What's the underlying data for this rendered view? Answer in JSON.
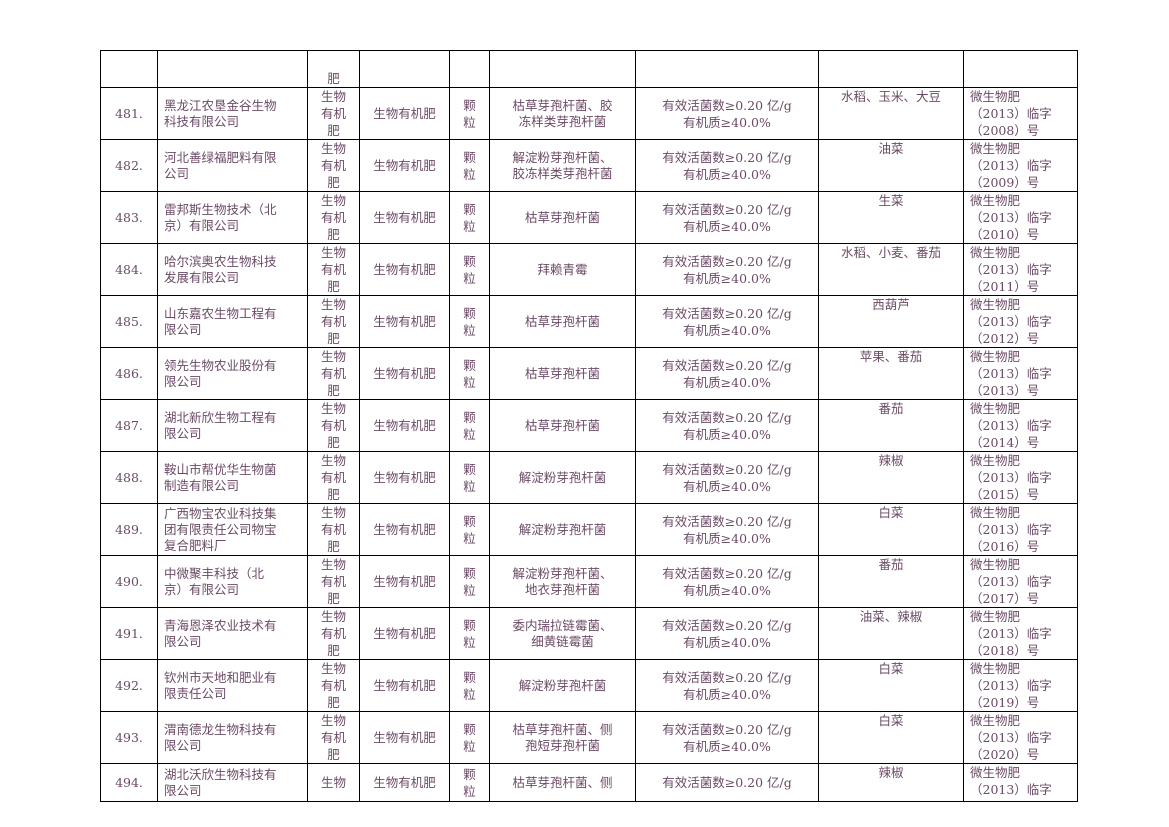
{
  "top_fragment": {
    "type_tail": "肥"
  },
  "rows": [
    {
      "no": "481.",
      "company": [
        "黑龙江农垦金谷生物",
        "科技有限公司"
      ],
      "type": [
        "生物",
        "有机",
        "肥"
      ],
      "name": "生物有机肥",
      "form": [
        "颗",
        "粒"
      ],
      "strain": [
        "枯草芽孢杆菌、胶",
        "冻样类芽孢杆菌"
      ],
      "index": [
        "有效活菌数≥0.20 亿/g",
        "有机质≥40.0%"
      ],
      "crop": "水稻、玉米、大豆",
      "reg": [
        "微生物肥",
        "（2013）临字",
        "（2008）号"
      ]
    },
    {
      "no": "482.",
      "company": [
        "河北善绿福肥料有限",
        "公司"
      ],
      "type": [
        "生物",
        "有机",
        "肥"
      ],
      "name": "生物有机肥",
      "form": [
        "颗",
        "粒"
      ],
      "strain": [
        "解淀粉芽孢杆菌、",
        "胶冻样类芽孢杆菌"
      ],
      "index": [
        "有效活菌数≥0.20 亿/g",
        "有机质≥40.0%"
      ],
      "crop": "油菜",
      "reg": [
        "微生物肥",
        "（2013）临字",
        "（2009）号"
      ]
    },
    {
      "no": "483.",
      "company": [
        "雷邦斯生物技术（北",
        "京）有限公司"
      ],
      "type": [
        "生物",
        "有机",
        "肥"
      ],
      "name": "生物有机肥",
      "form": [
        "颗",
        "粒"
      ],
      "strain": [
        "枯草芽孢杆菌"
      ],
      "index": [
        "有效活菌数≥0.20 亿/g",
        "有机质≥40.0%"
      ],
      "crop": "生菜",
      "reg": [
        "微生物肥",
        "（2013）临字",
        "（2010）号"
      ]
    },
    {
      "no": "484.",
      "company": [
        "哈尔滨奥农生物科技",
        "发展有限公司"
      ],
      "type": [
        "生物",
        "有机",
        "肥"
      ],
      "name": "生物有机肥",
      "form": [
        "颗",
        "粒"
      ],
      "strain": [
        "拜赖青霉"
      ],
      "index": [
        "有效活菌数≥0.20 亿/g",
        "有机质≥40.0%"
      ],
      "crop": "水稻、小麦、番茄",
      "reg": [
        "微生物肥",
        "（2013）临字",
        "（2011）号"
      ]
    },
    {
      "no": "485.",
      "company": [
        "山东嘉农生物工程有",
        "限公司"
      ],
      "type": [
        "生物",
        "有机",
        "肥"
      ],
      "name": "生物有机肥",
      "form": [
        "颗",
        "粒"
      ],
      "strain": [
        "枯草芽孢杆菌"
      ],
      "index": [
        "有效活菌数≥0.20 亿/g",
        "有机质≥40.0%"
      ],
      "crop": "西葫芦",
      "reg": [
        "微生物肥",
        "（2013）临字",
        "（2012）号"
      ]
    },
    {
      "no": "486.",
      "company": [
        "领先生物农业股份有",
        "限公司"
      ],
      "type": [
        "生物",
        "有机",
        "肥"
      ],
      "name": "生物有机肥",
      "form": [
        "颗",
        "粒"
      ],
      "strain": [
        "枯草芽孢杆菌"
      ],
      "index": [
        "有效活菌数≥0.20 亿/g",
        "有机质≥40.0%"
      ],
      "crop": "苹果、番茄",
      "reg": [
        "微生物肥",
        "（2013）临字",
        "（2013）号"
      ]
    },
    {
      "no": "487.",
      "company": [
        "湖北新欣生物工程有",
        "限公司"
      ],
      "type": [
        "生物",
        "有机",
        "肥"
      ],
      "name": "生物有机肥",
      "form": [
        "颗",
        "粒"
      ],
      "strain": [
        "枯草芽孢杆菌"
      ],
      "index": [
        "有效活菌数≥0.20 亿/g",
        "有机质≥40.0%"
      ],
      "crop": "番茄",
      "reg": [
        "微生物肥",
        "（2013）临字",
        "（2014）号"
      ]
    },
    {
      "no": "488.",
      "company": [
        "鞍山市帮优华生物菌",
        "制造有限公司"
      ],
      "type": [
        "生物",
        "有机",
        "肥"
      ],
      "name": "生物有机肥",
      "form": [
        "颗",
        "粒"
      ],
      "strain": [
        "解淀粉芽孢杆菌"
      ],
      "index": [
        "有效活菌数≥0.20 亿/g",
        "有机质≥40.0%"
      ],
      "crop": "辣椒",
      "reg": [
        "微生物肥",
        "（2013）临字",
        "（2015）号"
      ]
    },
    {
      "no": "489.",
      "company": [
        "广西物宝农业科技集",
        "团有限责任公司物宝",
        "复合肥料厂"
      ],
      "type": [
        "生物",
        "有机",
        "肥"
      ],
      "name": "生物有机肥",
      "form": [
        "颗",
        "粒"
      ],
      "strain": [
        "解淀粉芽孢杆菌"
      ],
      "index": [
        "有效活菌数≥0.20 亿/g",
        "有机质≥40.0%"
      ],
      "crop": "白菜",
      "reg": [
        "微生物肥",
        "（2013）临字",
        "（2016）号"
      ]
    },
    {
      "no": "490.",
      "company": [
        "中微聚丰科技（北",
        "京）有限公司"
      ],
      "type": [
        "生物",
        "有机",
        "肥"
      ],
      "name": "生物有机肥",
      "form": [
        "颗",
        "粒"
      ],
      "strain": [
        "解淀粉芽孢杆菌、",
        "地衣芽孢杆菌"
      ],
      "index": [
        "有效活菌数≥0.20 亿/g",
        "有机质≥40.0%"
      ],
      "crop": "番茄",
      "reg": [
        "微生物肥",
        "（2013）临字",
        "（2017）号"
      ]
    },
    {
      "no": "491.",
      "company": [
        "青海恩泽农业技术有",
        "限公司"
      ],
      "type": [
        "生物",
        "有机",
        "肥"
      ],
      "name": "生物有机肥",
      "form": [
        "颗",
        "粒"
      ],
      "strain": [
        "委内瑞拉链霉菌、",
        "细黄链霉菌"
      ],
      "index": [
        "有效活菌数≥0.20 亿/g",
        "有机质≥40.0%"
      ],
      "crop": "油菜、辣椒",
      "reg": [
        "微生物肥",
        "（2013）临字",
        "（2018）号"
      ]
    },
    {
      "no": "492.",
      "company": [
        "钦州市天地和肥业有",
        "限责任公司"
      ],
      "type": [
        "生物",
        "有机",
        "肥"
      ],
      "name": "生物有机肥",
      "form": [
        "颗",
        "粒"
      ],
      "strain": [
        "解淀粉芽孢杆菌"
      ],
      "index": [
        "有效活菌数≥0.20 亿/g",
        "有机质≥40.0%"
      ],
      "crop": "白菜",
      "reg": [
        "微生物肥",
        "（2013）临字",
        "（2019）号"
      ]
    },
    {
      "no": "493.",
      "company": [
        "渭南德龙生物科技有",
        "限公司"
      ],
      "type": [
        "生物",
        "有机",
        "肥"
      ],
      "name": "生物有机肥",
      "form": [
        "颗",
        "粒"
      ],
      "strain": [
        "枯草芽孢杆菌、侧",
        "孢短芽孢杆菌"
      ],
      "index": [
        "有效活菌数≥0.20 亿/g",
        "有机质≥40.0%"
      ],
      "crop": "白菜",
      "reg": [
        "微生物肥",
        "（2013）临字",
        "（2020）号"
      ]
    }
  ],
  "last_row": {
    "no": "494.",
    "company": [
      "湖北沃欣生物科技有",
      "限公司"
    ],
    "type": [
      "生物"
    ],
    "name": "生物有机肥",
    "form": [
      "颗",
      "粒"
    ],
    "strain": [
      "枯草芽孢杆菌、侧"
    ],
    "index": [
      "有效活菌数≥0.20 亿/g"
    ],
    "crop": "辣椒",
    "reg": [
      "微生物肥",
      "（2013）临字"
    ]
  }
}
